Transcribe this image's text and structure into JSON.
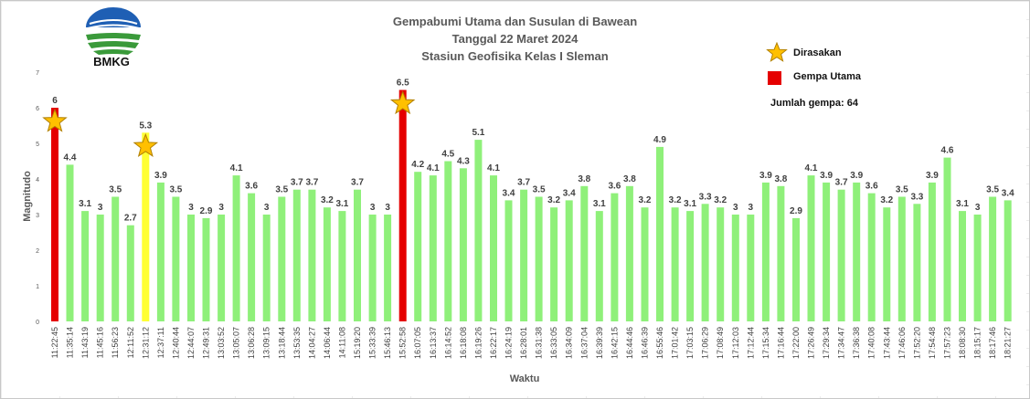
{
  "header": {
    "title_line1": "Gempabumi Utama dan Susulan di Bawean",
    "title_line2": "Tanggal 22 Maret 2024",
    "title_line3": "Stasiun Geofisika Kelas I Sleman"
  },
  "logo": {
    "text": "BMKG",
    "icon": "bmkg-logo"
  },
  "legend": {
    "felt_label": "Dirasakan",
    "felt_icon": "star-icon",
    "main_label": "Gempa Utama",
    "count_text": "Jumlah gempa: 64"
  },
  "colors": {
    "main": "#e50000",
    "felt": "#ffff33",
    "aftershock": "#8ff07a",
    "star": "#ffc000",
    "star_stroke": "#b07f00",
    "axis_text": "#595959"
  },
  "chart_data": {
    "type": "bar",
    "xlabel": "Waktu",
    "ylabel": "Magnitudo",
    "ylim": [
      0,
      7
    ],
    "yticks": [
      0,
      1,
      2,
      3,
      4,
      5,
      6,
      7
    ],
    "grid": false,
    "legend_position": "top-right",
    "categories": [
      "11:22:45",
      "11:35:14",
      "11:43:19",
      "11:45:16",
      "11:56:23",
      "12:11:52",
      "12:31:12",
      "12:37:11",
      "12:40:44",
      "12:44:07",
      "12:49:31",
      "13:03:52",
      "13:05:07",
      "13:06:28",
      "13:09:15",
      "13:18:44",
      "13:53:35",
      "14:04:27",
      "14:06:44",
      "14:11:08",
      "15:19:20",
      "15:33:39",
      "15:46:13",
      "15:52:58",
      "16:07:05",
      "16:13:37",
      "16:14:52",
      "16:18:08",
      "16:19:26",
      "16:22:17",
      "16:24:19",
      "16:28:01",
      "16:31:38",
      "16:33:05",
      "16:34:09",
      "16:37:04",
      "16:39:39",
      "16:42:15",
      "16:44:46",
      "16:46:39",
      "16:55:46",
      "17:01:42",
      "17:03:15",
      "17:06:29",
      "17:08:49",
      "17:12:03",
      "17:12:44",
      "17:15:34",
      "17:16:44",
      "17:22:00",
      "17:26:49",
      "17:29:34",
      "17:34:47",
      "17:36:38",
      "17:40:08",
      "17:43:44",
      "17:46:06",
      "17:52:20",
      "17:54:48",
      "17:57:23",
      "18:08:30",
      "18:15:17",
      "18:17:46",
      "18:21:27"
    ],
    "values": [
      6,
      4.4,
      3.1,
      3,
      3.5,
      2.7,
      5.3,
      3.9,
      3.5,
      3,
      2.9,
      3,
      4.1,
      3.6,
      3,
      3.5,
      3.7,
      3.7,
      3.2,
      3.1,
      3.7,
      3,
      3,
      6.5,
      4.2,
      4.1,
      4.5,
      4.3,
      5.1,
      4.1,
      3.4,
      3.7,
      3.5,
      3.2,
      3.4,
      3.8,
      3.1,
      3.6,
      3.8,
      3.2,
      4.9,
      3.2,
      3.1,
      3.3,
      3.2,
      3,
      3,
      3.9,
      3.8,
      2.9,
      4.1,
      3.9,
      3.7,
      3.9,
      3.6,
      3.2,
      3.5,
      3.3,
      3.9,
      4.6,
      3.1,
      3,
      3.5,
      3.4
    ],
    "labels": [
      "6",
      "4.4",
      "3.1",
      "3",
      "3.5",
      "2.7",
      "5.3",
      "3.9",
      "3.5",
      "3",
      "2.9",
      "3",
      "4.1",
      "3.6",
      "3",
      "3.5",
      "3.7",
      "3.7",
      "3.2",
      "3.1",
      "3.7",
      "3",
      "3",
      "6.5",
      "4.2",
      "4.1",
      "4.5",
      "4.3",
      "5.1",
      "4.1",
      "3.4",
      "3.7",
      "3.5",
      "3.2",
      "3.4",
      "3.8",
      "3.1",
      "3.6",
      "3.8",
      "3.2",
      "4.9",
      "3.2",
      "3.1",
      "3.3",
      "3.2",
      "3",
      "3",
      "3.9",
      "3.8",
      "2.9",
      "4.1",
      "3.9",
      "3.7",
      "3.9",
      "3.6",
      "3.2",
      "3.5",
      "3.3",
      "3.9",
      "4.6",
      "3.1",
      "3",
      "3.5",
      "3.4"
    ],
    "main_shocks": [
      0,
      23
    ],
    "felt": [
      0,
      6,
      23
    ]
  }
}
